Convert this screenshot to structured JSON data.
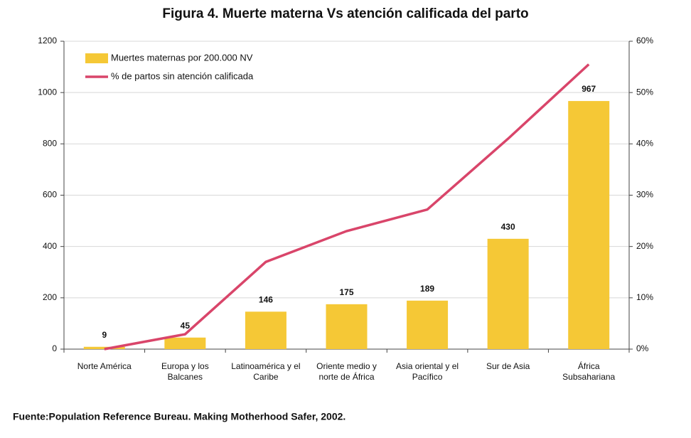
{
  "chart_data": {
    "type": "bar",
    "title": "Figura 4.  Muerte materna Vs atención calificada del parto",
    "categories": [
      "Norte América",
      "Europa y los Balcanes",
      "Latinoamérica y el Caribe",
      "Oriente medio y norte de África",
      "Asia oriental y el Pacífico",
      "Sur de Asia",
      "África Subsahariana"
    ],
    "series": [
      {
        "name": "Muertes maternas por 200.000 NV",
        "color": "#f5c836",
        "values": [
          9,
          45,
          146,
          175,
          189,
          430,
          967
        ]
      },
      {
        "name": "% de partos sin atención calificada",
        "color": "#d9456a",
        "type": "line",
        "axis": "y2",
        "values": [
          0,
          2.9,
          17,
          23,
          27.2,
          41,
          55.5
        ]
      }
    ],
    "ylim": [
      0,
      1200
    ],
    "yticks": [
      0,
      200,
      400,
      600,
      800,
      1000,
      1200
    ],
    "y2lim": [
      0,
      60
    ],
    "y2ticks": [
      {
        "value": 0,
        "label": "0%"
      },
      {
        "value": 10,
        "label": "10%"
      },
      {
        "value": 20,
        "label": "20%"
      },
      {
        "value": 30,
        "label": "30%"
      },
      {
        "value": 40,
        "label": "40%"
      },
      {
        "value": 50,
        "label": "50%"
      },
      {
        "value": 60,
        "label": "60%"
      }
    ],
    "grid": true,
    "legend": "upper left"
  },
  "source": "Fuente:Population Reference Bureau. Making Motherhood Safer, 2002."
}
